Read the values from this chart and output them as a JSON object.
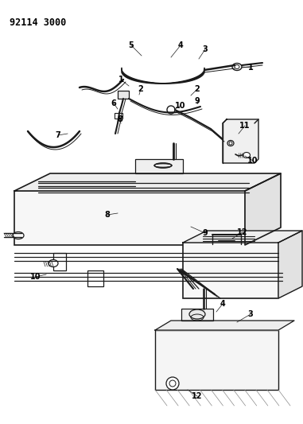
{
  "title": "92114 3000",
  "bg": "#ffffff",
  "lc": "#1a1a1a",
  "fig_w": 3.81,
  "fig_h": 5.33,
  "dpi": 100
}
